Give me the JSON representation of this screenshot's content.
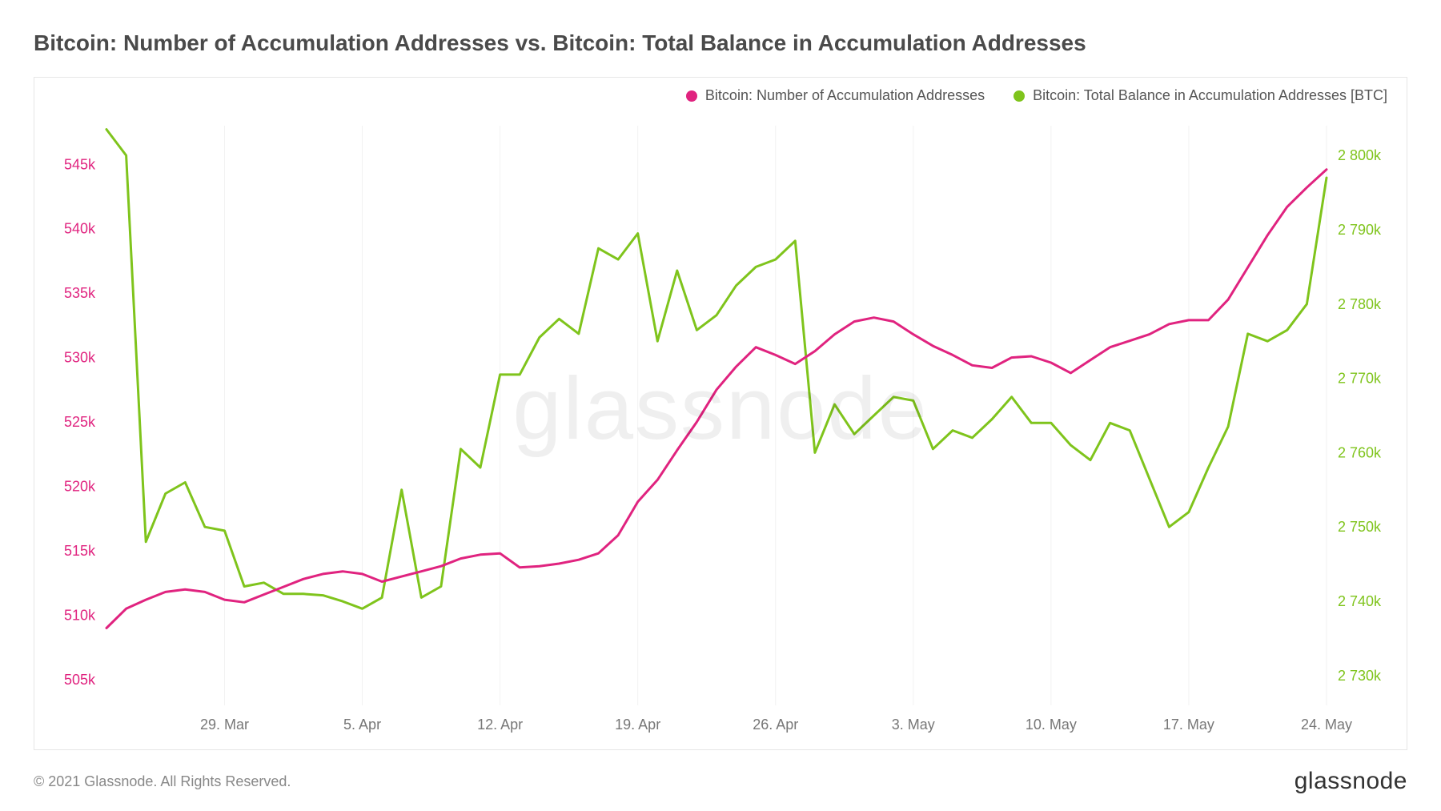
{
  "title": "Bitcoin: Number of Accumulation Addresses vs. Bitcoin: Total Balance in Accumulation Addresses",
  "watermark": "glassnode",
  "footer_copyright": "© 2021 Glassnode. All Rights Reserved.",
  "footer_brand": "glassnode",
  "legend": {
    "series1": {
      "label": "Bitcoin: Number of Accumulation Addresses",
      "color": "#e0237f"
    },
    "series2": {
      "label": "Bitcoin: Total Balance in Accumulation Addresses [BTC]",
      "color": "#7fc41c"
    }
  },
  "chart": {
    "type": "line-dual-axis",
    "background_color": "#ffffff",
    "border_color": "#e6e6e6",
    "grid_color": "#f2f2f2",
    "line_width": 3,
    "title_fontsize": 28,
    "axis_fontsize": 18,
    "x": {
      "domain_min": 0,
      "domain_max": 62,
      "ticks": [
        {
          "v": 6,
          "label": "29. Mar"
        },
        {
          "v": 13,
          "label": "5. Apr"
        },
        {
          "v": 20,
          "label": "12. Apr"
        },
        {
          "v": 27,
          "label": "19. Apr"
        },
        {
          "v": 34,
          "label": "26. Apr"
        },
        {
          "v": 41,
          "label": "3. May"
        },
        {
          "v": 48,
          "label": "10. May"
        },
        {
          "v": 55,
          "label": "17. May"
        },
        {
          "v": 62,
          "label": "24. May"
        }
      ]
    },
    "y_left": {
      "color": "#e0237f",
      "domain_min": 503000,
      "domain_max": 548000,
      "ticks": [
        {
          "v": 505000,
          "label": "505k"
        },
        {
          "v": 510000,
          "label": "510k"
        },
        {
          "v": 515000,
          "label": "515k"
        },
        {
          "v": 520000,
          "label": "520k"
        },
        {
          "v": 525000,
          "label": "525k"
        },
        {
          "v": 530000,
          "label": "530k"
        },
        {
          "v": 535000,
          "label": "535k"
        },
        {
          "v": 540000,
          "label": "540k"
        },
        {
          "v": 545000,
          "label": "545k"
        }
      ]
    },
    "y_right": {
      "color": "#7fc41c",
      "domain_min": 2726000,
      "domain_max": 2804000,
      "ticks": [
        {
          "v": 2730000,
          "label": "2 730k"
        },
        {
          "v": 2740000,
          "label": "2 740k"
        },
        {
          "v": 2750000,
          "label": "2 750k"
        },
        {
          "v": 2760000,
          "label": "2 760k"
        },
        {
          "v": 2770000,
          "label": "2 770k"
        },
        {
          "v": 2780000,
          "label": "2 780k"
        },
        {
          "v": 2790000,
          "label": "2 790k"
        },
        {
          "v": 2800000,
          "label": "2 800k"
        }
      ]
    },
    "series1": {
      "color": "#e0237f",
      "axis": "left",
      "data": [
        [
          0,
          509000
        ],
        [
          1,
          510500
        ],
        [
          2,
          511200
        ],
        [
          3,
          511800
        ],
        [
          4,
          512000
        ],
        [
          5,
          511800
        ],
        [
          6,
          511200
        ],
        [
          7,
          511000
        ],
        [
          8,
          511600
        ],
        [
          9,
          512200
        ],
        [
          10,
          512800
        ],
        [
          11,
          513200
        ],
        [
          12,
          513400
        ],
        [
          13,
          513200
        ],
        [
          14,
          512600
        ],
        [
          15,
          513000
        ],
        [
          16,
          513400
        ],
        [
          17,
          513800
        ],
        [
          18,
          514400
        ],
        [
          19,
          514700
        ],
        [
          20,
          514800
        ],
        [
          21,
          513700
        ],
        [
          22,
          513800
        ],
        [
          23,
          514000
        ],
        [
          24,
          514300
        ],
        [
          25,
          514800
        ],
        [
          26,
          516200
        ],
        [
          27,
          518800
        ],
        [
          28,
          520500
        ],
        [
          29,
          522800
        ],
        [
          30,
          525000
        ],
        [
          31,
          527500
        ],
        [
          32,
          529300
        ],
        [
          33,
          530800
        ],
        [
          34,
          530200
        ],
        [
          35,
          529500
        ],
        [
          36,
          530500
        ],
        [
          37,
          531800
        ],
        [
          38,
          532800
        ],
        [
          39,
          533100
        ],
        [
          40,
          532800
        ],
        [
          41,
          531800
        ],
        [
          42,
          530900
        ],
        [
          43,
          530200
        ],
        [
          44,
          529400
        ],
        [
          45,
          529200
        ],
        [
          46,
          530000
        ],
        [
          47,
          530100
        ],
        [
          48,
          529600
        ],
        [
          49,
          528800
        ],
        [
          50,
          529800
        ],
        [
          51,
          530800
        ],
        [
          52,
          531300
        ],
        [
          53,
          531800
        ],
        [
          54,
          532600
        ],
        [
          55,
          532900
        ],
        [
          56,
          532900
        ],
        [
          57,
          534500
        ],
        [
          58,
          537000
        ],
        [
          59,
          539500
        ],
        [
          60,
          541700
        ],
        [
          61,
          543200
        ],
        [
          62,
          544600
        ]
      ]
    },
    "series2": {
      "color": "#7fc41c",
      "axis": "right",
      "data": [
        [
          0,
          2803500
        ],
        [
          1,
          2800000
        ],
        [
          2,
          2748000
        ],
        [
          3,
          2754500
        ],
        [
          4,
          2756000
        ],
        [
          5,
          2750000
        ],
        [
          6,
          2749500
        ],
        [
          7,
          2742000
        ],
        [
          8,
          2742500
        ],
        [
          9,
          2741000
        ],
        [
          10,
          2741000
        ],
        [
          11,
          2740800
        ],
        [
          12,
          2740000
        ],
        [
          13,
          2739000
        ],
        [
          14,
          2740500
        ],
        [
          15,
          2755000
        ],
        [
          16,
          2740500
        ],
        [
          17,
          2742000
        ],
        [
          18,
          2760500
        ],
        [
          19,
          2758000
        ],
        [
          20,
          2770500
        ],
        [
          21,
          2770500
        ],
        [
          22,
          2775500
        ],
        [
          23,
          2778000
        ],
        [
          24,
          2776000
        ],
        [
          25,
          2787500
        ],
        [
          26,
          2786000
        ],
        [
          27,
          2789500
        ],
        [
          28,
          2775000
        ],
        [
          29,
          2784500
        ],
        [
          30,
          2776500
        ],
        [
          31,
          2778500
        ],
        [
          32,
          2782500
        ],
        [
          33,
          2785000
        ],
        [
          34,
          2786000
        ],
        [
          35,
          2788500
        ],
        [
          36,
          2760000
        ],
        [
          37,
          2766500
        ],
        [
          38,
          2762500
        ],
        [
          39,
          2765000
        ],
        [
          40,
          2767500
        ],
        [
          41,
          2767000
        ],
        [
          42,
          2760500
        ],
        [
          43,
          2763000
        ],
        [
          44,
          2762000
        ],
        [
          45,
          2764500
        ],
        [
          46,
          2767500
        ],
        [
          47,
          2764000
        ],
        [
          48,
          2764000
        ],
        [
          49,
          2761000
        ],
        [
          50,
          2759000
        ],
        [
          51,
          2764000
        ],
        [
          52,
          2763000
        ],
        [
          53,
          2756500
        ],
        [
          54,
          2750000
        ],
        [
          55,
          2752000
        ],
        [
          56,
          2758000
        ],
        [
          57,
          2763500
        ],
        [
          58,
          2776000
        ],
        [
          59,
          2775000
        ],
        [
          60,
          2776500
        ],
        [
          61,
          2780000
        ],
        [
          62,
          2797000
        ]
      ]
    }
  }
}
